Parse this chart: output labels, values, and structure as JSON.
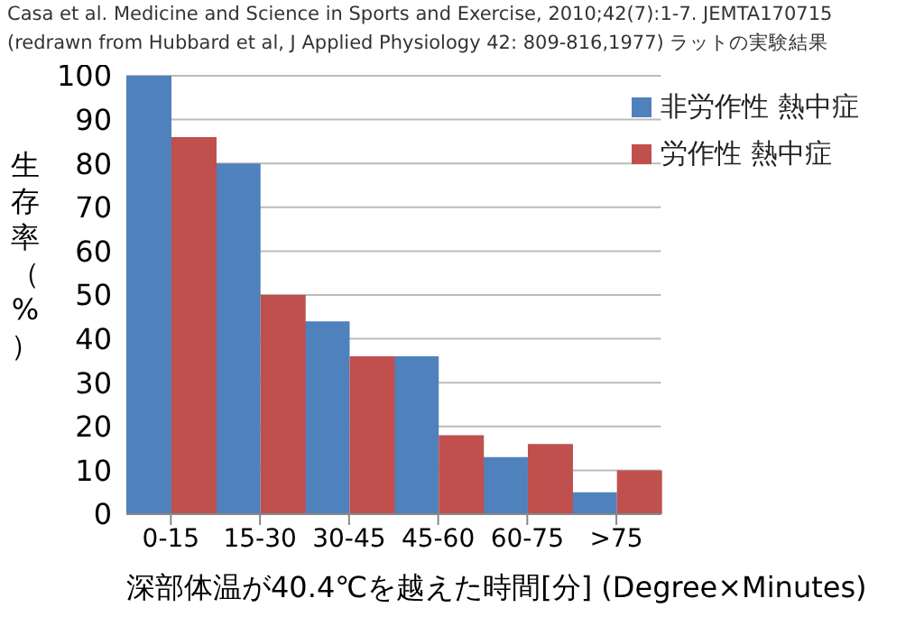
{
  "chart_data": {
    "type": "bar",
    "title": "Casa et al. Medicine and Science in Sports and Exercise, 2010;42(7):1-7.  JEMTA170715",
    "subtitle": "(redrawn from Hubbard et al, J Applied Physiology 42: 809-816,1977) ラットの実験結果",
    "xlabel": "深部体温が40.4℃を越えた時間[分]  (Degree×Minutes)",
    "ylabel": "生存率（%）",
    "categories": [
      "0-15",
      "15-30",
      "30-45",
      "45-60",
      "60-75",
      ">75"
    ],
    "series": [
      {
        "name": "非労作性 熱中症",
        "color": "#4f81bd",
        "values": [
          100,
          80,
          44,
          36,
          13,
          5
        ]
      },
      {
        "name": "労作性 熱中症",
        "color": "#c0504d",
        "values": [
          86,
          50,
          36,
          18,
          16,
          10
        ]
      }
    ],
    "ylim": [
      0,
      100
    ],
    "yticks": [
      0,
      10,
      20,
      30,
      40,
      50,
      60,
      70,
      80,
      90,
      100
    ],
    "grid": "y",
    "legend": "top right"
  }
}
